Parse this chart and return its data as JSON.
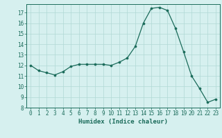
{
  "x": [
    0,
    1,
    2,
    3,
    4,
    5,
    6,
    7,
    8,
    9,
    10,
    11,
    12,
    13,
    14,
    15,
    16,
    17,
    18,
    19,
    20,
    21,
    22,
    23
  ],
  "y": [
    12.0,
    11.5,
    11.3,
    11.1,
    11.4,
    11.9,
    12.1,
    12.1,
    12.1,
    12.1,
    12.0,
    12.3,
    12.7,
    13.8,
    16.0,
    17.4,
    17.5,
    17.2,
    15.5,
    13.3,
    11.0,
    9.8,
    8.5,
    8.8
  ],
  "line_color": "#1a6b5a",
  "marker_color": "#1a6b5a",
  "bg_color": "#d6f0ef",
  "grid_color": "#b0d8d5",
  "xlabel": "Humidex (Indice chaleur)",
  "xlim": [
    -0.5,
    23.5
  ],
  "ylim": [
    8,
    17.8
  ],
  "xticks": [
    0,
    1,
    2,
    3,
    4,
    5,
    6,
    7,
    8,
    9,
    10,
    11,
    12,
    13,
    14,
    15,
    16,
    17,
    18,
    19,
    20,
    21,
    22,
    23
  ],
  "yticks": [
    8,
    9,
    10,
    11,
    12,
    13,
    14,
    15,
    16,
    17
  ],
  "tick_fontsize": 5.5,
  "label_fontsize": 6.5
}
